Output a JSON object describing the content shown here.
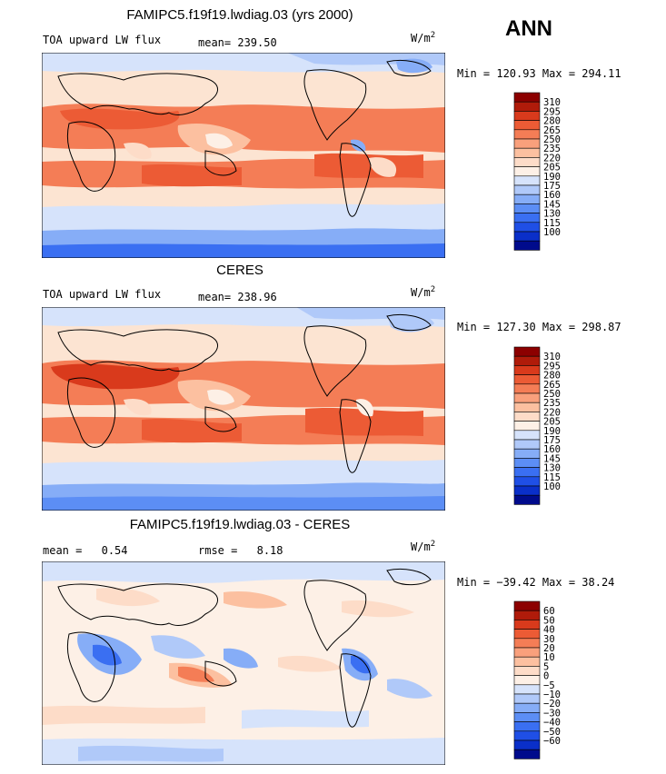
{
  "season": "ANN",
  "panels": [
    {
      "title": "FAMIPC5.f19f19.lwdiag.03 (yrs 2000)",
      "var_label": "TOA upward LW flux",
      "stat_label": "mean=",
      "stat_value": "239.50",
      "units": "W/m",
      "units_exp": "2",
      "minmax": "Min = 120.93 Max = 294.11",
      "colorbar": {
        "colors": [
          "#000b8c",
          "#0a2fc9",
          "#1f4fe6",
          "#3a6ff2",
          "#5c8ef5",
          "#86adf7",
          "#b0c9f9",
          "#d6e3fb",
          "#fdf0e6",
          "#fddcc8",
          "#fcc0a0",
          "#f9a07c",
          "#f47d56",
          "#ec5b35",
          "#d93a1c",
          "#b01b0a",
          "#8c0000"
        ],
        "levels": [
          "310",
          "295",
          "280",
          "265",
          "250",
          "235",
          "220",
          "205",
          "190",
          "175",
          "160",
          "145",
          "130",
          "115",
          "100"
        ]
      }
    },
    {
      "title": "CERES",
      "var_label": "TOA upward LW flux",
      "stat_label": "mean=",
      "stat_value": "238.96",
      "units": "W/m",
      "units_exp": "2",
      "minmax": "Min = 127.30 Max = 298.87",
      "colorbar": {
        "colors": [
          "#000b8c",
          "#0a2fc9",
          "#1f4fe6",
          "#3a6ff2",
          "#5c8ef5",
          "#86adf7",
          "#b0c9f9",
          "#d6e3fb",
          "#fdf0e6",
          "#fddcc8",
          "#fcc0a0",
          "#f9a07c",
          "#f47d56",
          "#ec5b35",
          "#d93a1c",
          "#b01b0a",
          "#8c0000"
        ],
        "levels": [
          "310",
          "295",
          "280",
          "265",
          "250",
          "235",
          "220",
          "205",
          "190",
          "175",
          "160",
          "145",
          "130",
          "115",
          "100"
        ]
      }
    },
    {
      "title": "FAMIPC5.f19f19.lwdiag.03 - CERES",
      "stat_label": "mean =",
      "stat_value": "0.54",
      "rmse_label": "rmse =",
      "rmse_value": "8.18",
      "units": "W/m",
      "units_exp": "2",
      "minmax": "Min = −39.42 Max =  38.24",
      "colorbar": {
        "colors": [
          "#000b8c",
          "#0a2fc9",
          "#1f4fe6",
          "#3a6ff2",
          "#5c8ef5",
          "#86adf7",
          "#b0c9f9",
          "#d6e3fb",
          "#fdf0e6",
          "#fddcc8",
          "#fcc0a0",
          "#f9a07c",
          "#f47d56",
          "#ec5b35",
          "#d93a1c",
          "#b01b0a",
          "#8c0000"
        ],
        "levels": [
          "60",
          "50",
          "40",
          "30",
          "20",
          "10",
          "5",
          "0",
          "−5",
          "−10",
          "−20",
          "−30",
          "−40",
          "−50",
          "−60"
        ]
      }
    }
  ],
  "chart_data": [
    {
      "type": "heatmap",
      "title": "FAMIPC5.f19f19.lwdiag.03 (yrs 2000)",
      "variable": "TOA upward LW flux",
      "units": "W/m2",
      "mean": 239.5,
      "min": 120.93,
      "max": 294.11,
      "contour_levels": [
        100,
        115,
        130,
        145,
        160,
        175,
        190,
        205,
        220,
        235,
        250,
        265,
        280,
        295,
        310
      ],
      "legend_position": "right"
    },
    {
      "type": "heatmap",
      "title": "CERES",
      "variable": "TOA upward LW flux",
      "units": "W/m2",
      "mean": 238.96,
      "min": 127.3,
      "max": 298.87,
      "contour_levels": [
        100,
        115,
        130,
        145,
        160,
        175,
        190,
        205,
        220,
        235,
        250,
        265,
        280,
        295,
        310
      ],
      "legend_position": "right"
    },
    {
      "type": "heatmap",
      "title": "FAMIPC5.f19f19.lwdiag.03 - CERES",
      "units": "W/m2",
      "mean": 0.54,
      "rmse": 8.18,
      "min": -39.42,
      "max": 38.24,
      "contour_levels": [
        -60,
        -50,
        -40,
        -30,
        -20,
        -10,
        -5,
        0,
        5,
        10,
        20,
        30,
        40,
        50,
        60
      ],
      "legend_position": "right"
    }
  ]
}
